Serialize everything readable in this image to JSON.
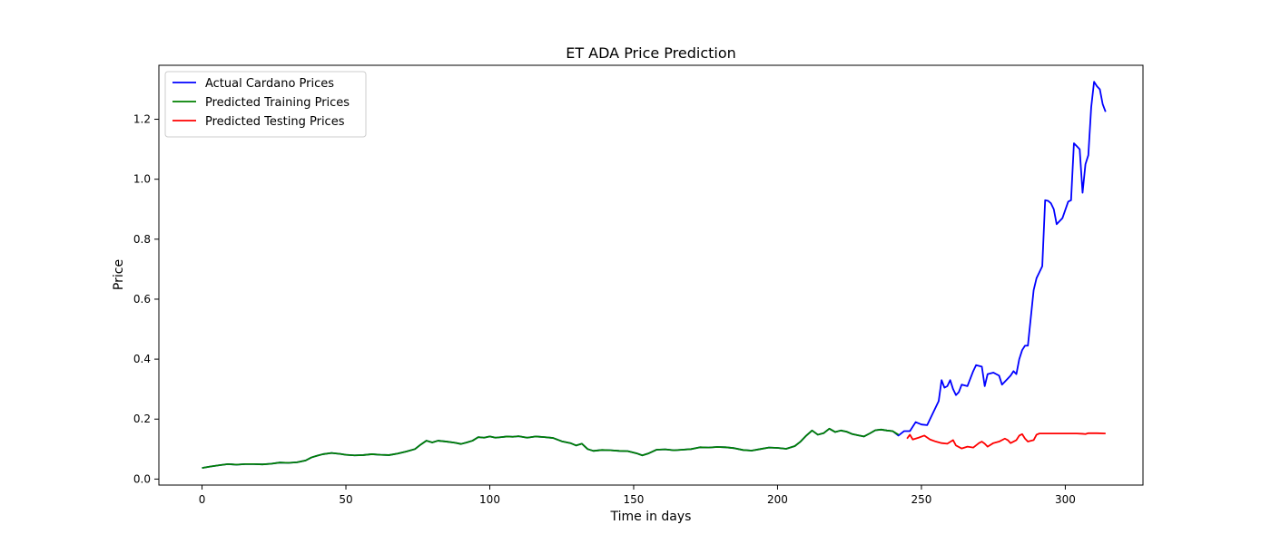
{
  "chart_data": {
    "type": "line",
    "title": "ET ADA Price Prediction",
    "xlabel": "Time in days",
    "ylabel": "Price",
    "xlim": [
      -15,
      327
    ],
    "ylim": [
      -0.02,
      1.38
    ],
    "xticks": [
      0,
      50,
      100,
      150,
      200,
      250,
      300
    ],
    "yticks": [
      0.0,
      0.2,
      0.4,
      0.6,
      0.8,
      1.0,
      1.2
    ],
    "grid": false,
    "legend_position": "top-left",
    "series": [
      {
        "name": "Actual Cardano Prices",
        "color": "#0000ff",
        "points": [
          [
            0,
            0.037
          ],
          [
            3,
            0.042
          ],
          [
            6,
            0.046
          ],
          [
            9,
            0.05
          ],
          [
            12,
            0.048
          ],
          [
            15,
            0.05
          ],
          [
            18,
            0.05
          ],
          [
            21,
            0.049
          ],
          [
            24,
            0.051
          ],
          [
            27,
            0.055
          ],
          [
            30,
            0.054
          ],
          [
            33,
            0.056
          ],
          [
            36,
            0.062
          ],
          [
            38,
            0.072
          ],
          [
            40,
            0.078
          ],
          [
            42,
            0.083
          ],
          [
            45,
            0.087
          ],
          [
            48,
            0.084
          ],
          [
            50,
            0.081
          ],
          [
            53,
            0.079
          ],
          [
            56,
            0.08
          ],
          [
            59,
            0.083
          ],
          [
            62,
            0.081
          ],
          [
            65,
            0.08
          ],
          [
            68,
            0.085
          ],
          [
            71,
            0.092
          ],
          [
            74,
            0.1
          ],
          [
            76,
            0.115
          ],
          [
            78,
            0.128
          ],
          [
            80,
            0.122
          ],
          [
            82,
            0.128
          ],
          [
            85,
            0.125
          ],
          [
            88,
            0.121
          ],
          [
            90,
            0.117
          ],
          [
            92,
            0.122
          ],
          [
            94,
            0.128
          ],
          [
            96,
            0.14
          ],
          [
            98,
            0.138
          ],
          [
            100,
            0.142
          ],
          [
            102,
            0.138
          ],
          [
            104,
            0.14
          ],
          [
            106,
            0.142
          ],
          [
            108,
            0.141
          ],
          [
            110,
            0.143
          ],
          [
            113,
            0.138
          ],
          [
            116,
            0.142
          ],
          [
            119,
            0.14
          ],
          [
            122,
            0.137
          ],
          [
            125,
            0.126
          ],
          [
            128,
            0.12
          ],
          [
            130,
            0.112
          ],
          [
            132,
            0.118
          ],
          [
            134,
            0.1
          ],
          [
            136,
            0.094
          ],
          [
            139,
            0.097
          ],
          [
            142,
            0.096
          ],
          [
            145,
            0.094
          ],
          [
            148,
            0.093
          ],
          [
            151,
            0.086
          ],
          [
            153,
            0.079
          ],
          [
            155,
            0.085
          ],
          [
            158,
            0.098
          ],
          [
            161,
            0.099
          ],
          [
            164,
            0.096
          ],
          [
            167,
            0.098
          ],
          [
            170,
            0.1
          ],
          [
            173,
            0.106
          ],
          [
            176,
            0.105
          ],
          [
            179,
            0.107
          ],
          [
            182,
            0.106
          ],
          [
            185,
            0.103
          ],
          [
            188,
            0.097
          ],
          [
            191,
            0.095
          ],
          [
            194,
            0.1
          ],
          [
            197,
            0.105
          ],
          [
            200,
            0.104
          ],
          [
            203,
            0.101
          ],
          [
            206,
            0.11
          ],
          [
            208,
            0.125
          ],
          [
            210,
            0.145
          ],
          [
            212,
            0.162
          ],
          [
            214,
            0.148
          ],
          [
            216,
            0.153
          ],
          [
            218,
            0.168
          ],
          [
            220,
            0.157
          ],
          [
            222,
            0.162
          ],
          [
            224,
            0.158
          ],
          [
            226,
            0.15
          ],
          [
            228,
            0.146
          ],
          [
            230,
            0.142
          ],
          [
            232,
            0.152
          ],
          [
            234,
            0.163
          ],
          [
            236,
            0.165
          ],
          [
            238,
            0.162
          ],
          [
            240,
            0.16
          ],
          [
            242,
            0.145
          ],
          [
            244,
            0.16
          ],
          [
            246,
            0.16
          ],
          [
            248,
            0.19
          ],
          [
            250,
            0.182
          ],
          [
            252,
            0.18
          ],
          [
            254,
            0.22
          ],
          [
            255,
            0.24
          ],
          [
            256,
            0.26
          ],
          [
            257,
            0.33
          ],
          [
            258,
            0.305
          ],
          [
            259,
            0.31
          ],
          [
            260,
            0.33
          ],
          [
            261,
            0.3
          ],
          [
            262,
            0.28
          ],
          [
            263,
            0.29
          ],
          [
            264,
            0.315
          ],
          [
            266,
            0.31
          ],
          [
            268,
            0.36
          ],
          [
            269,
            0.38
          ],
          [
            271,
            0.375
          ],
          [
            272,
            0.31
          ],
          [
            273,
            0.35
          ],
          [
            275,
            0.355
          ],
          [
            276,
            0.35
          ],
          [
            277,
            0.345
          ],
          [
            278,
            0.315
          ],
          [
            280,
            0.335
          ],
          [
            281,
            0.345
          ],
          [
            282,
            0.36
          ],
          [
            283,
            0.35
          ],
          [
            284,
            0.4
          ],
          [
            285,
            0.43
          ],
          [
            286,
            0.445
          ],
          [
            287,
            0.445
          ],
          [
            289,
            0.63
          ],
          [
            290,
            0.67
          ],
          [
            292,
            0.71
          ],
          [
            293,
            0.93
          ],
          [
            294,
            0.928
          ],
          [
            295,
            0.92
          ],
          [
            296,
            0.9
          ],
          [
            297,
            0.85
          ],
          [
            299,
            0.87
          ],
          [
            301,
            0.925
          ],
          [
            302,
            0.93
          ],
          [
            303,
            1.12
          ],
          [
            304,
            1.11
          ],
          [
            305,
            1.1
          ],
          [
            306,
            0.955
          ],
          [
            307,
            1.05
          ],
          [
            308,
            1.08
          ],
          [
            309,
            1.24
          ],
          [
            310,
            1.325
          ],
          [
            311,
            1.31
          ],
          [
            312,
            1.3
          ],
          [
            313,
            1.25
          ],
          [
            314,
            1.225
          ]
        ]
      },
      {
        "name": "Predicted Training Prices",
        "color": "#008000",
        "points": [
          [
            0,
            0.037
          ],
          [
            3,
            0.042
          ],
          [
            6,
            0.046
          ],
          [
            9,
            0.05
          ],
          [
            12,
            0.048
          ],
          [
            15,
            0.05
          ],
          [
            18,
            0.05
          ],
          [
            21,
            0.049
          ],
          [
            24,
            0.051
          ],
          [
            27,
            0.055
          ],
          [
            30,
            0.054
          ],
          [
            33,
            0.056
          ],
          [
            36,
            0.062
          ],
          [
            38,
            0.072
          ],
          [
            40,
            0.078
          ],
          [
            42,
            0.083
          ],
          [
            45,
            0.087
          ],
          [
            48,
            0.084
          ],
          [
            50,
            0.081
          ],
          [
            53,
            0.079
          ],
          [
            56,
            0.08
          ],
          [
            59,
            0.083
          ],
          [
            62,
            0.081
          ],
          [
            65,
            0.08
          ],
          [
            68,
            0.085
          ],
          [
            71,
            0.092
          ],
          [
            74,
            0.1
          ],
          [
            76,
            0.115
          ],
          [
            78,
            0.128
          ],
          [
            80,
            0.122
          ],
          [
            82,
            0.128
          ],
          [
            85,
            0.125
          ],
          [
            88,
            0.121
          ],
          [
            90,
            0.117
          ],
          [
            92,
            0.122
          ],
          [
            94,
            0.128
          ],
          [
            96,
            0.14
          ],
          [
            98,
            0.138
          ],
          [
            100,
            0.142
          ],
          [
            102,
            0.138
          ],
          [
            104,
            0.14
          ],
          [
            106,
            0.142
          ],
          [
            108,
            0.141
          ],
          [
            110,
            0.143
          ],
          [
            113,
            0.138
          ],
          [
            116,
            0.142
          ],
          [
            119,
            0.14
          ],
          [
            122,
            0.137
          ],
          [
            125,
            0.126
          ],
          [
            128,
            0.12
          ],
          [
            130,
            0.112
          ],
          [
            132,
            0.118
          ],
          [
            134,
            0.1
          ],
          [
            136,
            0.094
          ],
          [
            139,
            0.097
          ],
          [
            142,
            0.096
          ],
          [
            145,
            0.094
          ],
          [
            148,
            0.093
          ],
          [
            151,
            0.086
          ],
          [
            153,
            0.079
          ],
          [
            155,
            0.085
          ],
          [
            158,
            0.098
          ],
          [
            161,
            0.099
          ],
          [
            164,
            0.096
          ],
          [
            167,
            0.098
          ],
          [
            170,
            0.1
          ],
          [
            173,
            0.106
          ],
          [
            176,
            0.105
          ],
          [
            179,
            0.107
          ],
          [
            182,
            0.106
          ],
          [
            185,
            0.103
          ],
          [
            188,
            0.097
          ],
          [
            191,
            0.095
          ],
          [
            194,
            0.1
          ],
          [
            197,
            0.105
          ],
          [
            200,
            0.104
          ],
          [
            203,
            0.101
          ],
          [
            206,
            0.11
          ],
          [
            208,
            0.125
          ],
          [
            210,
            0.145
          ],
          [
            212,
            0.162
          ],
          [
            214,
            0.148
          ],
          [
            216,
            0.153
          ],
          [
            218,
            0.168
          ],
          [
            220,
            0.157
          ],
          [
            222,
            0.162
          ],
          [
            224,
            0.158
          ],
          [
            226,
            0.15
          ],
          [
            228,
            0.146
          ],
          [
            230,
            0.142
          ],
          [
            232,
            0.152
          ],
          [
            234,
            0.163
          ],
          [
            236,
            0.165
          ],
          [
            238,
            0.162
          ],
          [
            240,
            0.16
          ],
          [
            242,
            0.148
          ]
        ]
      },
      {
        "name": "Predicted Testing Prices",
        "color": "#ff0000",
        "points": [
          [
            245,
            0.135
          ],
          [
            246,
            0.148
          ],
          [
            247,
            0.132
          ],
          [
            249,
            0.138
          ],
          [
            251,
            0.145
          ],
          [
            253,
            0.132
          ],
          [
            255,
            0.125
          ],
          [
            257,
            0.12
          ],
          [
            259,
            0.118
          ],
          [
            261,
            0.13
          ],
          [
            262,
            0.112
          ],
          [
            264,
            0.102
          ],
          [
            266,
            0.108
          ],
          [
            268,
            0.105
          ],
          [
            270,
            0.12
          ],
          [
            271,
            0.125
          ],
          [
            272,
            0.118
          ],
          [
            273,
            0.108
          ],
          [
            275,
            0.12
          ],
          [
            277,
            0.125
          ],
          [
            279,
            0.135
          ],
          [
            280,
            0.13
          ],
          [
            281,
            0.12
          ],
          [
            283,
            0.13
          ],
          [
            284,
            0.145
          ],
          [
            285,
            0.15
          ],
          [
            286,
            0.135
          ],
          [
            287,
            0.125
          ],
          [
            289,
            0.13
          ],
          [
            290,
            0.148
          ],
          [
            291,
            0.152
          ],
          [
            293,
            0.152
          ],
          [
            296,
            0.152
          ],
          [
            300,
            0.152
          ],
          [
            304,
            0.152
          ],
          [
            306,
            0.151
          ],
          [
            307,
            0.15
          ],
          [
            308,
            0.153
          ],
          [
            311,
            0.153
          ],
          [
            314,
            0.152
          ]
        ]
      }
    ]
  }
}
